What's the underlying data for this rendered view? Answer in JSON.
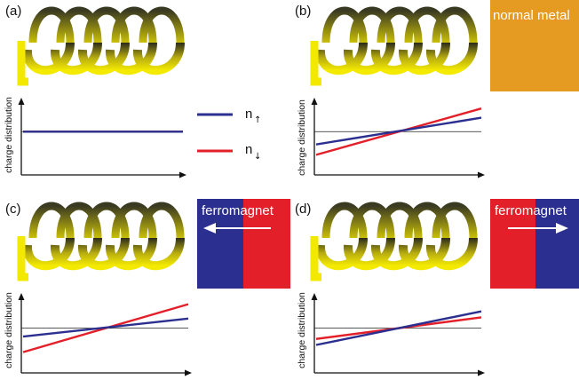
{
  "colors": {
    "spin_up": "#2b2f8f",
    "spin_down": "#e3202a",
    "normal_metal": "#e59a22",
    "coil_light": "#f2e800",
    "coil_dark": "#2a2a1a",
    "axis": "#111111"
  },
  "legend": [
    {
      "symbol": "n",
      "subscript": "↑",
      "color": "#2b2f8f"
    },
    {
      "symbol": "n",
      "subscript": "↓",
      "color": "#e3202a"
    }
  ],
  "panels": [
    {
      "label": "(a)",
      "ylabel": "charge distribution",
      "material": null,
      "lines": {
        "up": [
          0.0,
          0.0
        ],
        "down": [
          0.0,
          0.0
        ]
      }
    },
    {
      "label": "(b)",
      "ylabel": "charge distribution",
      "material": {
        "text": "normal metal",
        "type": "normal",
        "arrow": null
      },
      "lines": {
        "up": [
          -0.55,
          0.6
        ],
        "down": [
          -1.0,
          1.0
        ]
      }
    },
    {
      "label": "(c)",
      "ylabel": "charge distribution",
      "material": {
        "text": "ferromagnet",
        "type": "blue-red",
        "arrow": "left"
      },
      "lines": {
        "up": [
          -0.35,
          0.4
        ],
        "down": [
          -1.0,
          1.0
        ]
      }
    },
    {
      "label": "(d)",
      "ylabel": "charge distribution",
      "material": {
        "text": "ferromagnet",
        "type": "red-blue",
        "arrow": "right"
      },
      "lines": {
        "up": [
          -0.7,
          0.7
        ],
        "down": [
          -0.45,
          0.45
        ]
      }
    }
  ]
}
